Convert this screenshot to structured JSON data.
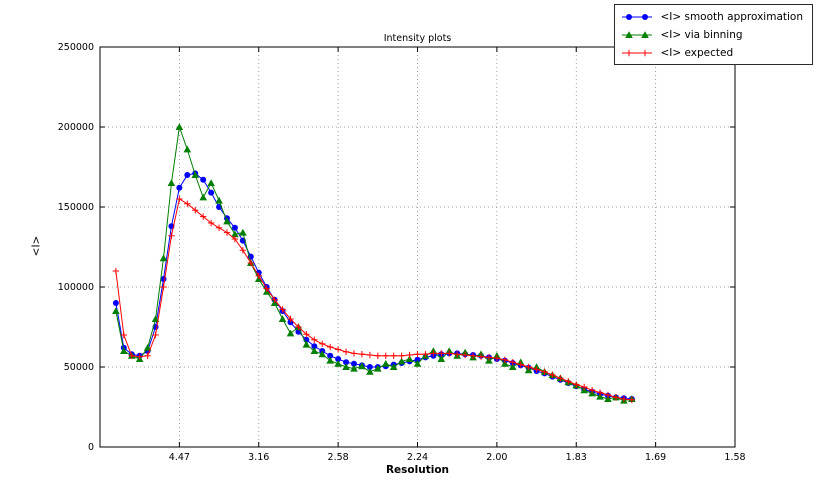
{
  "page": {
    "background": "#ffffff"
  },
  "chart_data": {
    "type": "line",
    "title": "Intensity plots",
    "xlabel": "Resolution",
    "ylabel": "<I>",
    "xlim": [
      0,
      0.4
    ],
    "ylim": [
      0,
      250000
    ],
    "grid": true,
    "legend_position": "upper-right",
    "x_ticks": [
      {
        "value": 0.05,
        "label": "4.47"
      },
      {
        "value": 0.1,
        "label": "3.16"
      },
      {
        "value": 0.15,
        "label": "2.58"
      },
      {
        "value": 0.2,
        "label": "2.24"
      },
      {
        "value": 0.25,
        "label": "2.00"
      },
      {
        "value": 0.3,
        "label": "1.83"
      },
      {
        "value": 0.35,
        "label": "1.69"
      },
      {
        "value": 0.4,
        "label": "1.58"
      }
    ],
    "y_ticks": [
      {
        "value": 0,
        "label": "0"
      },
      {
        "value": 50000,
        "label": "50000"
      },
      {
        "value": 100000,
        "label": "100000"
      },
      {
        "value": 150000,
        "label": "150000"
      },
      {
        "value": 200000,
        "label": "200000"
      },
      {
        "value": 250000,
        "label": "250000"
      }
    ],
    "x": [
      0.01,
      0.015,
      0.02,
      0.025,
      0.03,
      0.035,
      0.04,
      0.045,
      0.05,
      0.055,
      0.06,
      0.065,
      0.07,
      0.075,
      0.08,
      0.085,
      0.09,
      0.095,
      0.1,
      0.105,
      0.11,
      0.115,
      0.12,
      0.125,
      0.13,
      0.135,
      0.14,
      0.145,
      0.15,
      0.155,
      0.16,
      0.165,
      0.17,
      0.175,
      0.18,
      0.185,
      0.19,
      0.195,
      0.2,
      0.205,
      0.21,
      0.215,
      0.22,
      0.225,
      0.23,
      0.235,
      0.24,
      0.245,
      0.25,
      0.255,
      0.26,
      0.265,
      0.27,
      0.275,
      0.28,
      0.285,
      0.29,
      0.295,
      0.3,
      0.305,
      0.31,
      0.315,
      0.32,
      0.325,
      0.33,
      0.335
    ],
    "series": [
      {
        "name": "<I> smooth approximation",
        "color": "#0000ff",
        "marker": "circle",
        "values": [
          90000,
          62000,
          58000,
          57000,
          60000,
          75000,
          105000,
          138000,
          162000,
          170000,
          171000,
          167000,
          159000,
          150000,
          143000,
          137000,
          129000,
          119000,
          109000,
          100000,
          92000,
          85000,
          78000,
          72000,
          67000,
          63000,
          60000,
          57000,
          55000,
          53000,
          52000,
          51000,
          50000,
          50000,
          50500,
          51500,
          52500,
          53500,
          54500,
          56000,
          57000,
          58000,
          58500,
          58500,
          58000,
          57500,
          57000,
          56000,
          55000,
          54000,
          52500,
          51000,
          49500,
          47500,
          46000,
          44000,
          42000,
          40000,
          38000,
          36000,
          34500,
          33000,
          32000,
          31000,
          30500,
          30000
        ]
      },
      {
        "name": "<I> via binning",
        "color": "#007f00",
        "marker": "triangle",
        "values": [
          85000,
          60000,
          57000,
          55000,
          62000,
          80000,
          118000,
          165000,
          200000,
          186000,
          170000,
          156000,
          165000,
          154000,
          141000,
          133000,
          134000,
          115000,
          105000,
          97000,
          90000,
          80000,
          71000,
          75000,
          64000,
          60000,
          58000,
          54000,
          52000,
          50000,
          49000,
          50500,
          47000,
          49000,
          52000,
          50000,
          53500,
          55000,
          52000,
          57000,
          60000,
          55000,
          60000,
          57000,
          59000,
          56000,
          58000,
          54000,
          57000,
          52000,
          50000,
          53000,
          48000,
          50000,
          47000,
          45000,
          43000,
          40500,
          38500,
          35500,
          33500,
          31500,
          30000,
          31000,
          29000,
          30000
        ]
      },
      {
        "name": "<I> expected",
        "color": "#ff0000",
        "marker": "plus",
        "values": [
          110000,
          70000,
          57000,
          56500,
          57000,
          70000,
          100000,
          132000,
          155000,
          152000,
          148000,
          144000,
          140000,
          137000,
          134000,
          130000,
          123000,
          115000,
          107000,
          99000,
          92000,
          86000,
          80000,
          75000,
          70500,
          67000,
          64500,
          62500,
          61000,
          59500,
          58500,
          58000,
          57500,
          57000,
          57000,
          57000,
          57000,
          57500,
          58000,
          58000,
          58500,
          58500,
          58500,
          58000,
          57500,
          57000,
          56500,
          56000,
          55500,
          54500,
          53000,
          51500,
          50000,
          48500,
          47000,
          45000,
          43000,
          41000,
          39000,
          37500,
          35500,
          34000,
          32500,
          31000,
          30000,
          29500
        ]
      }
    ]
  }
}
